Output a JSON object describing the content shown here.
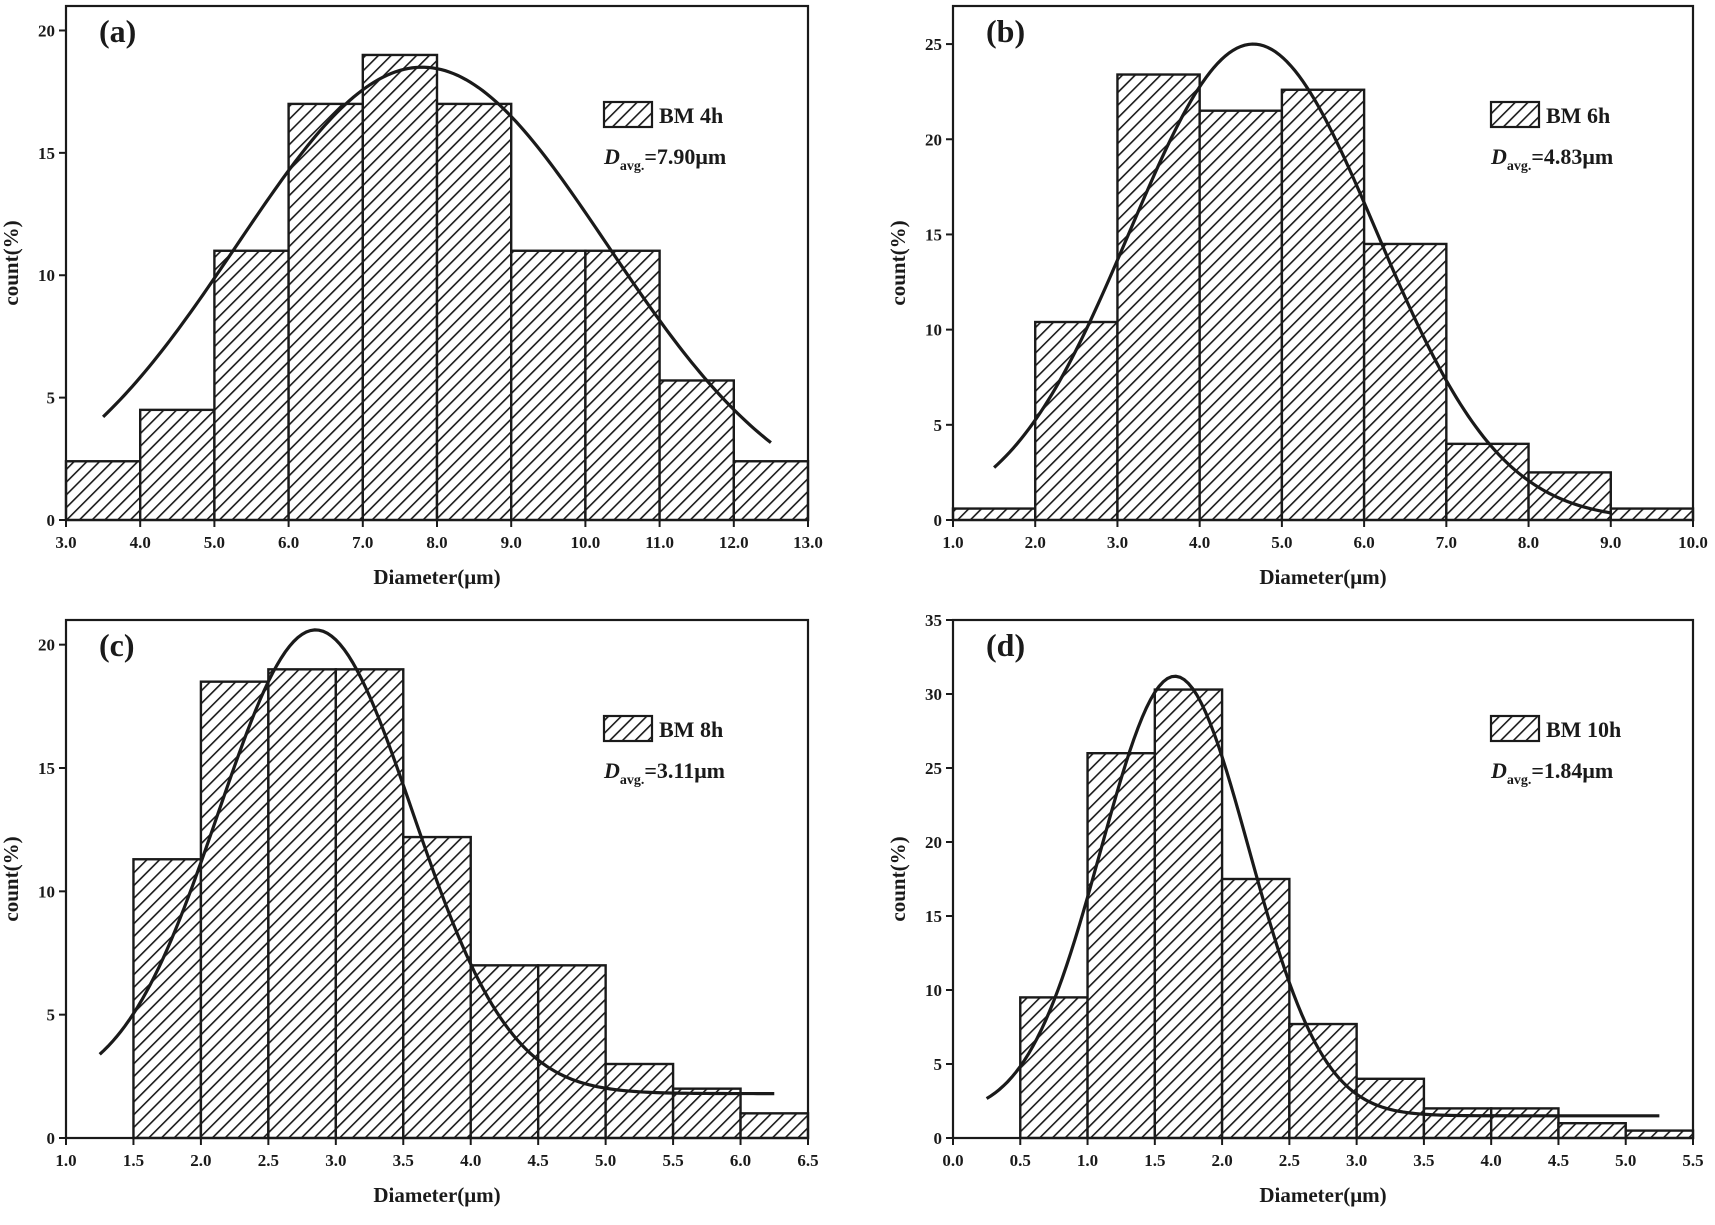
{
  "chart_data": [
    {
      "type": "bar",
      "panel_label": "(a)",
      "title": "",
      "xlabel": "Diameter(μm)",
      "ylabel": "count(%)",
      "xlim": [
        3.0,
        13.0
      ],
      "ylim": [
        0,
        21
      ],
      "x_ticks": [
        3.0,
        4.0,
        5.0,
        6.0,
        7.0,
        8.0,
        9.0,
        10.0,
        11.0,
        12.0,
        13.0
      ],
      "x_tick_labels": [
        "3.0",
        "4.0",
        "5.0",
        "6.0",
        "7.0",
        "8.0",
        "9.0",
        "10.0",
        "11.0",
        "12.0",
        "13.0"
      ],
      "y_ticks": [
        0,
        5,
        10,
        15,
        20
      ],
      "y_tick_labels": [
        "0",
        "5",
        "10",
        "15",
        "20"
      ],
      "bin_edges": [
        3.0,
        4.0,
        5.0,
        6.0,
        7.0,
        8.0,
        9.0,
        10.0,
        11.0,
        12.0,
        13.0
      ],
      "values": [
        2.4,
        4.5,
        11.0,
        17.0,
        19.0,
        17.0,
        11.0,
        11.0,
        5.7,
        2.4
      ],
      "fit_curve": {
        "type": "gaussian",
        "mean": 7.8,
        "sigma": 2.5,
        "peak": 18.5,
        "x_start": 3.5,
        "x_end": 12.5
      },
      "legend": {
        "label": "BM 4h",
        "position": "top-right"
      },
      "annotation": {
        "symbol": "D",
        "subscript": "avg.",
        "text": "=7.90μm"
      },
      "grid": false
    },
    {
      "type": "bar",
      "panel_label": "(b)",
      "title": "",
      "xlabel": "Diameter(μm)",
      "ylabel": "count(%)",
      "xlim": [
        1.0,
        10.0
      ],
      "ylim": [
        0,
        27
      ],
      "x_ticks": [
        1.0,
        2.0,
        3.0,
        4.0,
        5.0,
        6.0,
        7.0,
        8.0,
        9.0,
        10.0
      ],
      "x_tick_labels": [
        "1.0",
        "2.0",
        "3.0",
        "4.0",
        "5.0",
        "6.0",
        "7.0",
        "8.0",
        "9.0",
        "10.0"
      ],
      "y_ticks": [
        0,
        5,
        10,
        15,
        20,
        25
      ],
      "y_tick_labels": [
        "0",
        "5",
        "10",
        "15",
        "20",
        "25"
      ],
      "bin_edges": [
        1.0,
        2.0,
        3.0,
        4.0,
        5.0,
        6.0,
        7.0,
        8.0,
        9.0,
        10.0
      ],
      "values": [
        0.6,
        10.4,
        23.4,
        21.5,
        22.6,
        14.5,
        4.0,
        2.5,
        0.6
      ],
      "fit_curve": {
        "type": "gaussian",
        "mean": 4.65,
        "sigma": 1.5,
        "peak": 25.0,
        "x_start": 1.5,
        "x_end": 9.0
      },
      "legend": {
        "label": "BM 6h",
        "position": "top-right"
      },
      "annotation": {
        "symbol": "D",
        "subscript": "avg.",
        "text": "=4.83μm"
      },
      "grid": false
    },
    {
      "type": "bar",
      "panel_label": "(c)",
      "title": "",
      "xlabel": "Diameter(μm)",
      "ylabel": "count(%)",
      "xlim": [
        1.0,
        6.5
      ],
      "ylim": [
        0,
        21
      ],
      "x_ticks": [
        1.0,
        1.5,
        2.0,
        2.5,
        3.0,
        3.5,
        4.0,
        4.5,
        5.0,
        5.5,
        6.0,
        6.5
      ],
      "x_tick_labels": [
        "1.0",
        "1.5",
        "2.0",
        "2.5",
        "3.0",
        "3.5",
        "4.0",
        "4.5",
        "5.0",
        "5.5",
        "6.0",
        "6.5"
      ],
      "y_ticks": [
        0,
        5,
        10,
        15,
        20
      ],
      "y_tick_labels": [
        "0",
        "5",
        "10",
        "15",
        "20"
      ],
      "bin_edges": [
        1.5,
        2.0,
        2.5,
        3.0,
        3.5,
        4.0,
        4.5,
        5.0,
        5.5,
        6.0,
        6.5
      ],
      "values": [
        11.3,
        18.5,
        19.0,
        19.0,
        12.2,
        7.0,
        7.0,
        3.0,
        2.0,
        1.0
      ],
      "fit_curve": {
        "type": "gaussian",
        "mean": 2.85,
        "sigma": 0.72,
        "peak": 18.8,
        "offset": 1.8,
        "x_start": 1.25,
        "x_end": 6.25
      },
      "legend": {
        "label": "BM 8h",
        "position": "top-right"
      },
      "annotation": {
        "symbol": "D",
        "subscript": "avg.",
        "text": "=3.11μm"
      },
      "grid": false
    },
    {
      "type": "bar",
      "panel_label": "(d)",
      "title": "",
      "xlabel": "Diameter(μm)",
      "ylabel": "count(%)",
      "xlim": [
        0.0,
        5.5
      ],
      "ylim": [
        0,
        35
      ],
      "x_ticks": [
        0.0,
        0.5,
        1.0,
        1.5,
        2.0,
        2.5,
        3.0,
        3.5,
        4.0,
        4.5,
        5.0,
        5.5
      ],
      "x_tick_labels": [
        "0.0",
        "0.5",
        "1.0",
        "1.5",
        "2.0",
        "2.5",
        "3.0",
        "3.5",
        "4.0",
        "4.5",
        "5.0",
        "5.5"
      ],
      "y_ticks": [
        0,
        5,
        10,
        15,
        20,
        25,
        30,
        35
      ],
      "y_tick_labels": [
        "0",
        "5",
        "10",
        "15",
        "20",
        "25",
        "30",
        "35"
      ],
      "bin_edges": [
        0.5,
        1.0,
        1.5,
        2.0,
        2.5,
        3.0,
        3.5,
        4.0,
        4.5,
        5.0,
        5.5
      ],
      "values": [
        9.5,
        26.0,
        30.3,
        17.5,
        7.7,
        4.0,
        2.0,
        2.0,
        1.0,
        0.5
      ],
      "fit_curve": {
        "type": "gaussian",
        "mean": 1.65,
        "sigma": 0.55,
        "peak": 29.7,
        "offset": 1.5,
        "x_start": 0.25,
        "x_end": 5.25
      },
      "legend": {
        "label": "BM 10h",
        "position": "top-right"
      },
      "annotation": {
        "symbol": "D",
        "subscript": "avg.",
        "text": "=1.84μm"
      },
      "grid": false
    }
  ],
  "colors": {
    "ink": "#1a1a1a",
    "background": "#ffffff"
  }
}
